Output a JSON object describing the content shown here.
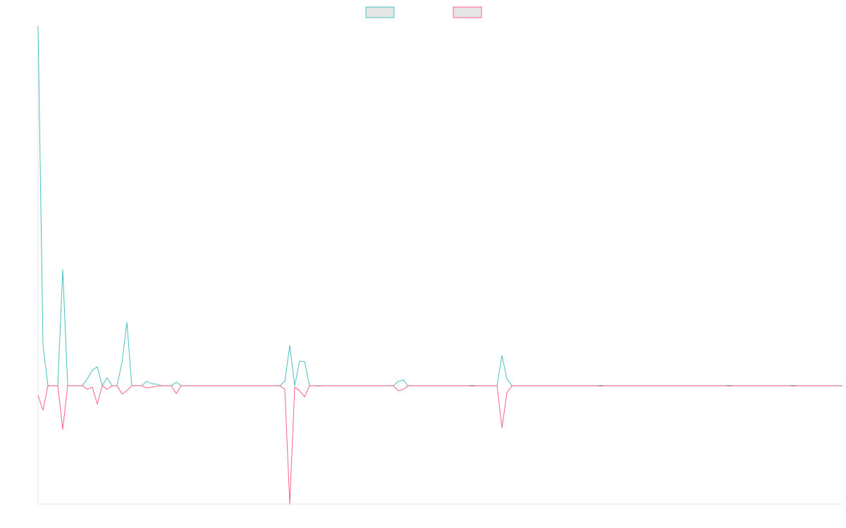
{
  "chart_data": {
    "type": "line",
    "ylim": [
      -32.9,
      100
    ],
    "legend": "top",
    "series": [
      {
        "color": "#4bc0c0",
        "values": [
          100,
          11.2,
          0,
          0,
          0,
          32.3,
          0,
          0,
          0,
          0,
          2,
          4.3,
          5.3,
          0,
          2.2,
          0,
          0,
          6.5,
          17.6,
          0,
          0,
          0,
          1.2,
          0.6,
          0.4,
          0,
          0,
          0,
          1,
          0,
          0,
          0,
          0,
          0,
          0,
          0,
          0,
          0,
          0,
          0,
          0,
          0,
          0,
          0,
          0,
          0,
          0,
          0,
          0,
          0,
          1.2,
          11.2,
          0,
          6.8,
          6.7,
          0,
          0,
          0,
          0,
          0,
          0,
          0,
          0,
          0,
          0,
          0,
          0,
          0,
          0,
          0,
          0,
          0,
          0,
          1.2,
          1.6,
          0,
          0,
          0,
          0,
          0,
          0,
          0,
          0,
          0,
          0,
          0,
          0,
          0,
          0.1,
          0,
          0,
          0,
          0,
          0,
          8.4,
          2,
          0,
          0,
          0,
          0,
          0,
          0,
          0,
          0,
          0,
          0,
          0,
          0,
          0,
          0,
          0,
          0,
          0,
          0,
          0.1,
          0,
          0,
          0,
          0,
          0,
          0,
          0,
          0,
          0,
          0,
          0,
          0,
          0,
          0,
          0,
          0,
          0,
          0,
          0,
          0,
          0,
          0,
          0,
          0,
          0,
          0.1,
          0,
          0,
          0,
          0,
          0,
          0,
          0,
          0,
          0,
          0,
          0,
          0,
          0.1,
          0,
          0,
          0,
          0,
          0,
          0,
          0,
          0,
          0,
          0
        ]
      },
      {
        "color": "#ff6384",
        "values": [
          -2.7,
          -6.8,
          0,
          0,
          0,
          -12.1,
          0,
          0,
          0,
          0,
          -1,
          -0.4,
          -5.1,
          0,
          -1,
          0,
          0,
          -2.3,
          -1.4,
          0,
          0,
          0,
          -0.6,
          -0.4,
          -0.2,
          0,
          0,
          0,
          -2.2,
          0,
          0,
          0,
          0,
          0,
          0,
          0,
          0,
          0,
          0,
          0,
          0,
          0,
          0,
          0,
          0,
          0,
          0,
          0,
          0,
          0,
          -1,
          -32.9,
          -0.4,
          -1.4,
          -3.1,
          0,
          0,
          -0.1,
          0,
          0,
          0,
          0,
          0,
          0,
          0,
          0,
          0,
          0,
          0,
          0,
          0,
          0,
          0,
          -1.4,
          -1,
          0,
          0,
          0,
          0,
          0,
          0,
          0,
          0,
          0,
          0,
          0,
          0,
          0,
          -0.1,
          0,
          0,
          0,
          0,
          0,
          -11.7,
          -2,
          0,
          0,
          0,
          0,
          0,
          0,
          0,
          0,
          0,
          0,
          0,
          0,
          0,
          0,
          0,
          0,
          0,
          0,
          -0.1,
          0,
          0,
          0,
          0,
          0,
          0,
          0,
          0,
          0,
          0,
          0,
          0,
          0,
          0,
          0,
          0,
          0,
          0,
          0,
          0,
          0,
          0,
          0,
          0,
          0,
          -0.1,
          0,
          0,
          0,
          0,
          0,
          0,
          0,
          0,
          0,
          0,
          0,
          0,
          -0.1,
          0,
          0,
          0,
          0,
          0,
          0,
          0,
          0,
          0,
          0
        ]
      }
    ]
  }
}
